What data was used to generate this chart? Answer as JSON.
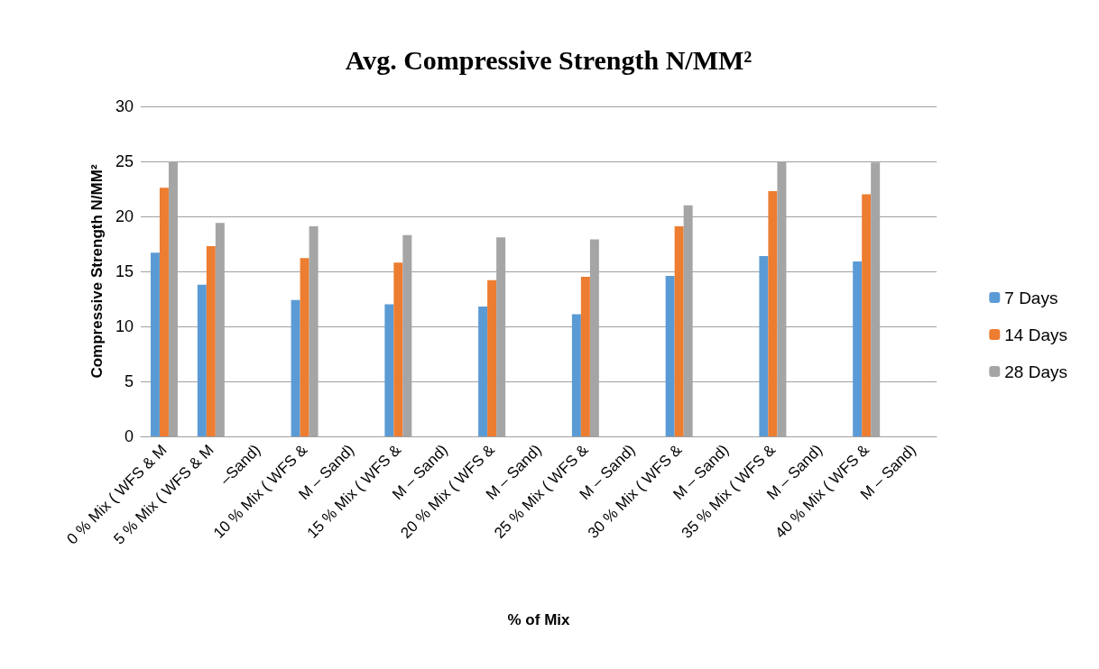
{
  "chart_data": {
    "type": "bar",
    "title": "Avg. Compressive Strength N/MM²",
    "xlabel": "% of Mix",
    "ylabel": "Compressive Strength N/MM²",
    "categories": [
      "0 % Mix ( WFS & M",
      "5 % Mix ( WFS & M",
      "–Sand)",
      "10 % Mix ( WFS &",
      "M – Sand)",
      "15 % Mix ( WFS &",
      "M – Sand)",
      "20 % Mix ( WFS &",
      "M – Sand)",
      "25 % Mix ( WFS &",
      "M – Sand)",
      "30 % Mix ( WFS &",
      "M – Sand)",
      "35 % Mix ( WFS &",
      "M – Sand)",
      "40 % Mix ( WFS &",
      "M – Sand)"
    ],
    "series": [
      {
        "name": "7 Days",
        "color": "#5b9bd5",
        "values": [
          16.7,
          13.8,
          null,
          12.4,
          null,
          12.0,
          null,
          11.8,
          null,
          11.1,
          null,
          14.6,
          null,
          16.4,
          null,
          15.9,
          null
        ]
      },
      {
        "name": "14 Days",
        "color": "#ed7d31",
        "values": [
          22.6,
          17.3,
          null,
          16.2,
          null,
          15.8,
          null,
          14.2,
          null,
          14.5,
          null,
          19.1,
          null,
          22.3,
          null,
          22.0,
          null
        ]
      },
      {
        "name": "28 Days",
        "color": "#a5a5a5",
        "values": [
          25.0,
          19.4,
          null,
          19.1,
          null,
          18.3,
          null,
          18.1,
          null,
          17.9,
          null,
          21.0,
          null,
          25.0,
          null,
          24.9,
          null
        ]
      }
    ],
    "ylim": [
      0,
      30
    ],
    "yticks": [
      0,
      5,
      10,
      15,
      20,
      25,
      30
    ],
    "grid": "y",
    "legend": "right"
  }
}
